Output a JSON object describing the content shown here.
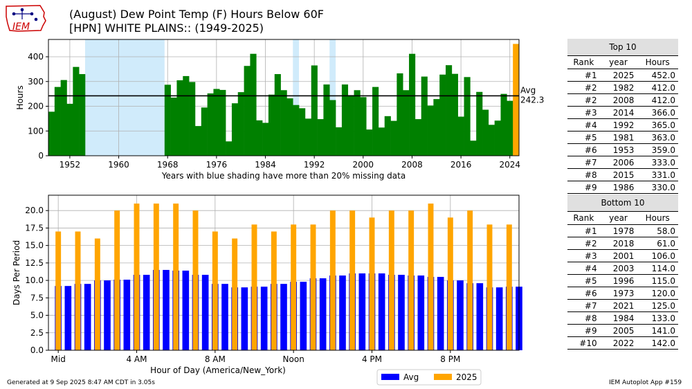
{
  "header": {
    "title": "(August) Dew Point Temp (F) Hours Below 60F",
    "subtitle": "[HPN] WHITE PLAINS:: (1949-2025)",
    "logo_text": "IEM"
  },
  "footer": {
    "generated": "Generated at 9 Sep 2025 8:47 AM CDT in 3.05s",
    "app": "IEM Autoplot App #159"
  },
  "colors": {
    "bar_green": "#008000",
    "avg_blue": "#0000ff",
    "current_orange": "#ffa500",
    "missing_shade": "#d0ebfb"
  },
  "chart_data": [
    {
      "type": "bar",
      "xlabel": "Years with blue shading have more than 20% missing data",
      "ylabel": "Hours",
      "xlim": [
        1948.5,
        2025.5
      ],
      "ylim": [
        0,
        470
      ],
      "xticks": [
        1952,
        1960,
        1968,
        1976,
        1984,
        1992,
        2000,
        2008,
        2016,
        2024
      ],
      "yticks": [
        0,
        100,
        200,
        300,
        400
      ],
      "avg_line": 242.3,
      "avg_label": [
        "Avg",
        "242.3"
      ],
      "missing_years": [
        1955,
        1956,
        1957,
        1958,
        1959,
        1960,
        1961,
        1962,
        1963,
        1964,
        1965,
        1966,
        1967,
        1989,
        1995
      ],
      "highlight_year": 2025,
      "x": [
        1949,
        1950,
        1951,
        1952,
        1953,
        1954,
        1955,
        1956,
        1957,
        1958,
        1959,
        1960,
        1961,
        1962,
        1963,
        1964,
        1965,
        1966,
        1967,
        1968,
        1969,
        1970,
        1971,
        1972,
        1973,
        1974,
        1975,
        1976,
        1977,
        1978,
        1979,
        1980,
        1981,
        1982,
        1983,
        1984,
        1985,
        1986,
        1987,
        1988,
        1989,
        1990,
        1991,
        1992,
        1993,
        1994,
        1995,
        1996,
        1997,
        1998,
        1999,
        2000,
        2001,
        2002,
        2003,
        2004,
        2005,
        2006,
        2007,
        2008,
        2009,
        2010,
        2011,
        2012,
        2013,
        2014,
        2015,
        2016,
        2017,
        2018,
        2019,
        2020,
        2021,
        2022,
        2023,
        2024,
        2025
      ],
      "values": [
        178,
        278,
        306,
        210,
        359,
        330,
        0,
        0,
        0,
        0,
        0,
        0,
        0,
        0,
        0,
        0,
        0,
        0,
        0,
        287,
        235,
        305,
        322,
        298,
        120,
        195,
        252,
        270,
        266,
        58,
        212,
        257,
        363,
        412,
        143,
        133,
        247,
        330,
        265,
        232,
        205,
        192,
        150,
        365,
        148,
        288,
        225,
        115,
        288,
        245,
        265,
        237,
        106,
        278,
        114,
        160,
        141,
        333,
        265,
        412,
        148,
        320,
        203,
        229,
        328,
        366,
        331,
        158,
        318,
        61,
        258,
        186,
        125,
        142,
        250,
        222,
        452
      ]
    },
    {
      "type": "bar",
      "xlabel": "Hour of Day (America/New_York)",
      "ylabel": "Days Per Period",
      "ylim": [
        0,
        22.2
      ],
      "xlim": [
        -0.5,
        23.5
      ],
      "yticks": [
        0.0,
        2.5,
        5.0,
        7.5,
        10.0,
        12.5,
        15.0,
        17.5,
        20.0
      ],
      "xtick_hours": [
        0,
        4,
        8,
        12,
        16,
        20
      ],
      "xtick_labels": [
        "Mid",
        "4 AM",
        "8 AM",
        "Noon",
        "4 PM",
        "8 PM"
      ],
      "x_half_hours": [
        0,
        0.5,
        1,
        1.5,
        2,
        2.5,
        3,
        3.5,
        4,
        4.5,
        5,
        5.5,
        6,
        6.5,
        7,
        7.5,
        8,
        8.5,
        9,
        9.5,
        10,
        10.5,
        11,
        11.5,
        12,
        12.5,
        13,
        13.5,
        14,
        14.5,
        15,
        15.5,
        16,
        16.5,
        17,
        17.5,
        18,
        18.5,
        19,
        19.5,
        20,
        20.5,
        21,
        21.5,
        22,
        22.5,
        23,
        23.5
      ],
      "series": [
        {
          "name": "Avg",
          "values": [
            9.2,
            9.2,
            9.5,
            9.5,
            10.0,
            10.0,
            10.1,
            10.1,
            10.8,
            10.8,
            11.5,
            11.5,
            11.4,
            11.4,
            10.8,
            10.8,
            9.5,
            9.5,
            9.0,
            9.0,
            9.1,
            9.1,
            9.5,
            9.5,
            9.8,
            9.8,
            10.3,
            10.3,
            10.7,
            10.7,
            11.0,
            11.0,
            11.0,
            11.0,
            10.8,
            10.8,
            10.7,
            10.7,
            10.5,
            10.5,
            10.0,
            10.0,
            9.6,
            9.6,
            9.0,
            9.0,
            9.1,
            9.1
          ]
        },
        {
          "name": "2025",
          "hours": [
            0,
            1,
            2,
            3,
            4,
            5,
            6,
            7,
            8,
            9,
            10,
            11,
            12,
            13,
            14,
            15,
            16,
            17,
            18,
            19,
            20,
            21,
            22,
            23
          ],
          "values": [
            17,
            17,
            16,
            20,
            21,
            21,
            21,
            20,
            17,
            16,
            18,
            17,
            18,
            18,
            20,
            20,
            19,
            20,
            20,
            21,
            19,
            20,
            18,
            18
          ]
        }
      ],
      "legend": "bottom-center"
    }
  ],
  "top10": {
    "title": "Top 10",
    "columns": [
      "Rank",
      "year",
      "Hours"
    ],
    "rows": [
      [
        "#1",
        "2025",
        "452.0"
      ],
      [
        "#2",
        "1982",
        "412.0"
      ],
      [
        "#2",
        "2008",
        "412.0"
      ],
      [
        "#3",
        "2014",
        "366.0"
      ],
      [
        "#4",
        "1992",
        "365.0"
      ],
      [
        "#5",
        "1981",
        "363.0"
      ],
      [
        "#6",
        "1953",
        "359.0"
      ],
      [
        "#7",
        "2006",
        "333.0"
      ],
      [
        "#8",
        "2015",
        "331.0"
      ],
      [
        "#9",
        "1986",
        "330.0"
      ]
    ]
  },
  "bottom10": {
    "title": "Bottom 10",
    "columns": [
      "Rank",
      "year",
      "Hours"
    ],
    "rows": [
      [
        "#1",
        "1978",
        "58.0"
      ],
      [
        "#2",
        "2018",
        "61.0"
      ],
      [
        "#3",
        "2001",
        "106.0"
      ],
      [
        "#4",
        "2003",
        "114.0"
      ],
      [
        "#5",
        "1996",
        "115.0"
      ],
      [
        "#6",
        "1973",
        "120.0"
      ],
      [
        "#7",
        "2021",
        "125.0"
      ],
      [
        "#8",
        "1984",
        "133.0"
      ],
      [
        "#9",
        "2005",
        "141.0"
      ],
      [
        "#10",
        "2022",
        "142.0"
      ]
    ]
  }
}
